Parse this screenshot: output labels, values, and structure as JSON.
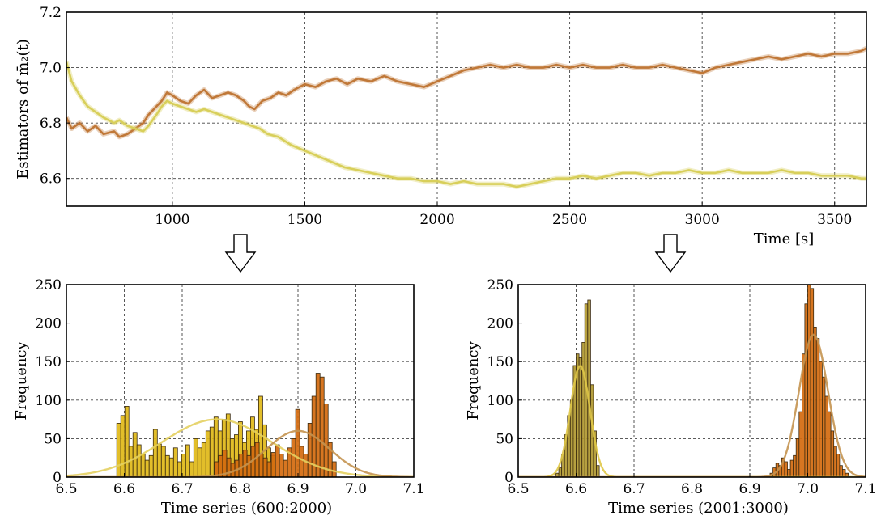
{
  "chart_data": [
    {
      "type": "line",
      "id": "top",
      "ylabel": "Estimators of m̄₂(t)",
      "xlabel": "Time [s]",
      "xlim": [
        600,
        3620
      ],
      "ylim": [
        6.5,
        7.2
      ],
      "xticks": [
        1000,
        1500,
        2000,
        2500,
        3000,
        3500
      ],
      "yticks": [
        6.6,
        6.8,
        7.0,
        7.2
      ],
      "ytick_labels": [
        "6.6",
        "6.8",
        "7.0",
        "7.2"
      ],
      "grid": true,
      "series": [
        {
          "color": "#c07838",
          "x": [
            600,
            620,
            650,
            680,
            710,
            740,
            780,
            800,
            830,
            860,
            890,
            910,
            940,
            960,
            980,
            1000,
            1030,
            1060,
            1090,
            1120,
            1150,
            1180,
            1210,
            1240,
            1270,
            1290,
            1310,
            1340,
            1370,
            1400,
            1430,
            1460,
            1500,
            1540,
            1580,
            1620,
            1660,
            1700,
            1750,
            1800,
            1850,
            1900,
            1950,
            2000,
            2050,
            2100,
            2150,
            2200,
            2250,
            2300,
            2350,
            2400,
            2450,
            2500,
            2550,
            2600,
            2650,
            2700,
            2750,
            2800,
            2850,
            2900,
            2950,
            3000,
            3050,
            3100,
            3150,
            3200,
            3250,
            3300,
            3350,
            3400,
            3450,
            3500,
            3550,
            3600,
            3620
          ],
          "y": [
            6.82,
            6.78,
            6.8,
            6.77,
            6.79,
            6.76,
            6.77,
            6.75,
            6.76,
            6.78,
            6.8,
            6.83,
            6.86,
            6.88,
            6.91,
            6.9,
            6.88,
            6.87,
            6.9,
            6.92,
            6.89,
            6.9,
            6.91,
            6.9,
            6.88,
            6.86,
            6.85,
            6.88,
            6.89,
            6.91,
            6.9,
            6.92,
            6.94,
            6.93,
            6.95,
            6.96,
            6.94,
            6.96,
            6.95,
            6.97,
            6.95,
            6.94,
            6.93,
            6.95,
            6.97,
            6.99,
            7.0,
            7.01,
            7.0,
            7.01,
            7.0,
            7.0,
            7.01,
            7.0,
            7.01,
            7.0,
            7.0,
            7.01,
            7.0,
            7.0,
            7.01,
            7.0,
            6.99,
            6.98,
            7.0,
            7.01,
            7.02,
            7.03,
            7.04,
            7.03,
            7.04,
            7.05,
            7.04,
            7.05,
            7.05,
            7.06,
            7.07
          ]
        },
        {
          "color": "#d8cf5a",
          "x": [
            600,
            620,
            650,
            680,
            710,
            740,
            780,
            800,
            830,
            860,
            890,
            910,
            940,
            960,
            980,
            1000,
            1030,
            1060,
            1090,
            1120,
            1150,
            1180,
            1210,
            1240,
            1270,
            1300,
            1330,
            1360,
            1400,
            1450,
            1500,
            1550,
            1600,
            1650,
            1700,
            1750,
            1800,
            1850,
            1900,
            1950,
            2000,
            2050,
            2100,
            2150,
            2200,
            2250,
            2300,
            2350,
            2400,
            2450,
            2500,
            2550,
            2600,
            2650,
            2700,
            2750,
            2800,
            2850,
            2900,
            2950,
            3000,
            3050,
            3100,
            3150,
            3200,
            3250,
            3300,
            3350,
            3400,
            3450,
            3500,
            3550,
            3600,
            3620
          ],
          "y": [
            7.02,
            6.95,
            6.9,
            6.86,
            6.84,
            6.82,
            6.8,
            6.81,
            6.79,
            6.78,
            6.77,
            6.79,
            6.83,
            6.86,
            6.88,
            6.87,
            6.86,
            6.85,
            6.84,
            6.85,
            6.84,
            6.83,
            6.82,
            6.81,
            6.8,
            6.79,
            6.78,
            6.76,
            6.75,
            6.72,
            6.7,
            6.68,
            6.66,
            6.64,
            6.63,
            6.62,
            6.61,
            6.6,
            6.6,
            6.59,
            6.59,
            6.58,
            6.59,
            6.58,
            6.58,
            6.58,
            6.57,
            6.58,
            6.59,
            6.6,
            6.6,
            6.61,
            6.6,
            6.61,
            6.62,
            6.62,
            6.61,
            6.62,
            6.62,
            6.63,
            6.62,
            6.62,
            6.63,
            6.62,
            6.62,
            6.62,
            6.63,
            6.62,
            6.62,
            6.61,
            6.61,
            6.61,
            6.6,
            6.6
          ]
        }
      ]
    },
    {
      "type": "bar",
      "id": "bottom-left",
      "xlabel": "Time series (600:2000)",
      "ylabel": "Frequency",
      "xlim": [
        6.5,
        7.1
      ],
      "ylim": [
        0,
        250
      ],
      "xticks": [
        6.5,
        6.6,
        6.7,
        6.8,
        6.9,
        7.0,
        7.1
      ],
      "xtick_labels": [
        "6.5",
        "6.6",
        "6.7",
        "6.8",
        "6.9",
        "7.0",
        "7.1"
      ],
      "yticks": [
        0,
        50,
        100,
        150,
        200,
        250
      ],
      "grid": true,
      "bin_width": 0.007,
      "series": [
        {
          "color": "#e0b818",
          "bins": [
            6.587,
            6.594,
            6.601,
            6.608,
            6.615,
            6.622,
            6.629,
            6.636,
            6.643,
            6.65,
            6.657,
            6.664,
            6.671,
            6.678,
            6.685,
            6.692,
            6.699,
            6.706,
            6.713,
            6.72,
            6.727,
            6.734,
            6.741,
            6.748,
            6.755,
            6.762,
            6.769,
            6.776,
            6.783,
            6.79,
            6.797,
            6.804,
            6.811,
            6.818,
            6.825,
            6.832,
            6.839,
            6.846,
            6.853
          ],
          "values": [
            70,
            80,
            92,
            40,
            58,
            42,
            30,
            22,
            28,
            62,
            43,
            40,
            28,
            25,
            38,
            20,
            30,
            42,
            20,
            50,
            38,
            45,
            60,
            65,
            78,
            60,
            75,
            82,
            50,
            55,
            72,
            45,
            60,
            78,
            62,
            105,
            68,
            38,
            28
          ]
        },
        {
          "color": "#d46a0e",
          "bins": [
            6.756,
            6.763,
            6.77,
            6.777,
            6.784,
            6.791,
            6.798,
            6.805,
            6.812,
            6.819,
            6.826,
            6.833,
            6.84,
            6.847,
            6.854,
            6.861,
            6.868,
            6.875,
            6.882,
            6.889,
            6.896,
            6.903,
            6.91,
            6.917,
            6.924,
            6.931,
            6.938,
            6.945,
            6.952,
            6.959
          ],
          "values": [
            20,
            28,
            35,
            25,
            18,
            22,
            30,
            35,
            28,
            40,
            45,
            30,
            25,
            20,
            32,
            42,
            30,
            22,
            38,
            50,
            88,
            40,
            30,
            70,
            105,
            135,
            130,
            95,
            45,
            20
          ]
        }
      ],
      "fits": [
        {
          "color": "#e4d060",
          "mean": 6.76,
          "sd": 0.095,
          "peak": 75
        },
        {
          "color": "#c49450",
          "mean": 6.9,
          "sd": 0.055,
          "peak": 60
        }
      ]
    },
    {
      "type": "bar",
      "id": "bottom-right",
      "xlabel": "Time series (2001:3000)",
      "ylabel": "Frequency",
      "xlim": [
        6.5,
        7.1
      ],
      "ylim": [
        0,
        250
      ],
      "xticks": [
        6.5,
        6.6,
        6.7,
        6.8,
        6.9,
        7.0,
        7.1
      ],
      "xtick_labels": [
        "6.5",
        "6.6",
        "6.7",
        "6.8",
        "6.9",
        "7.0",
        "7.1"
      ],
      "yticks": [
        0,
        50,
        100,
        150,
        200,
        250
      ],
      "grid": true,
      "bin_width": 0.005,
      "series": [
        {
          "color": "#b09830",
          "bins": [
            6.565,
            6.57,
            6.575,
            6.58,
            6.585,
            6.59,
            6.595,
            6.6,
            6.605,
            6.61,
            6.615,
            6.62,
            6.625,
            6.63,
            6.635
          ],
          "values": [
            5,
            12,
            30,
            55,
            80,
            100,
            145,
            160,
            155,
            175,
            225,
            230,
            120,
            60,
            15
          ]
        },
        {
          "color": "#d46a0e",
          "bins": [
            6.935,
            6.94,
            6.945,
            6.95,
            6.955,
            6.96,
            6.965,
            6.97,
            6.975,
            6.98,
            6.985,
            6.99,
            6.995,
            7.0,
            7.005,
            7.01,
            7.015,
            7.02,
            7.025,
            7.03,
            7.035,
            7.04,
            7.045,
            7.05,
            7.055,
            7.06,
            7.065
          ],
          "values": [
            5,
            12,
            18,
            15,
            25,
            20,
            10,
            22,
            28,
            50,
            85,
            160,
            225,
            250,
            245,
            195,
            180,
            150,
            130,
            105,
            85,
            60,
            40,
            30,
            15,
            10,
            5
          ]
        }
      ],
      "fits": [
        {
          "color": "#e0c848",
          "mean": 6.607,
          "sd": 0.017,
          "peak": 145
        },
        {
          "color": "#c49450",
          "mean": 7.01,
          "sd": 0.025,
          "peak": 185
        }
      ]
    }
  ]
}
